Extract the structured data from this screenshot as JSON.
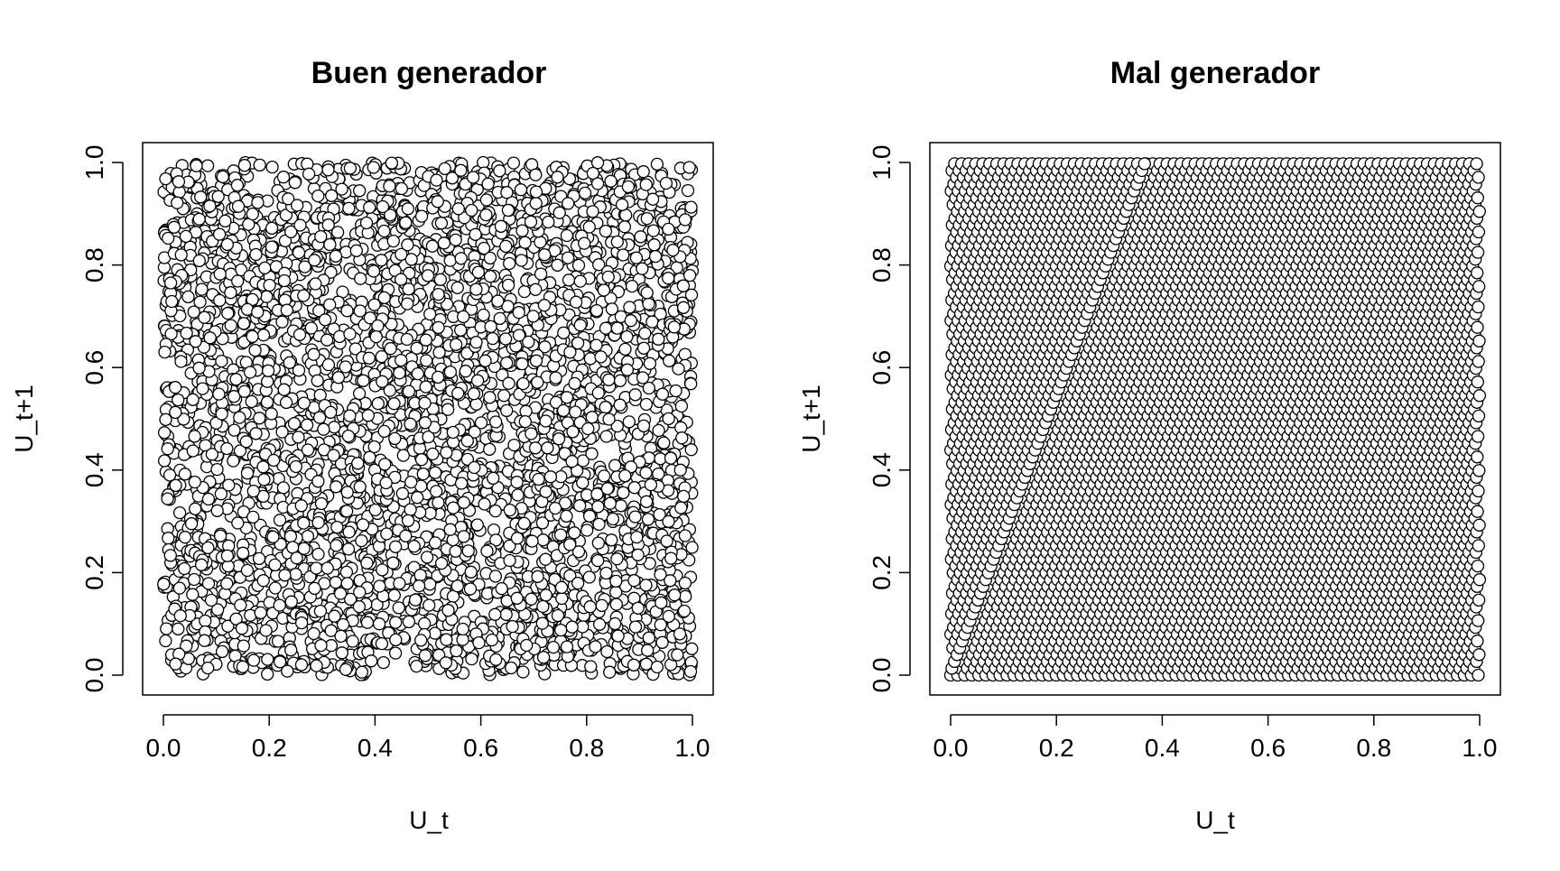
{
  "colors": {
    "background": "#ffffff",
    "marker_fill": "#ffffff",
    "marker_stroke": "#000000",
    "axis": "#000000"
  },
  "chart_data": [
    {
      "type": "scatter",
      "title": "Buen generador",
      "xlabel": "U_t",
      "ylabel": "U_t+1",
      "xlim": [
        0,
        1
      ],
      "ylim": [
        0,
        1
      ],
      "xticks": [
        "0.0",
        "0.2",
        "0.4",
        "0.6",
        "0.8",
        "1.0"
      ],
      "yticks": [
        "0.0",
        "0.2",
        "0.4",
        "0.6",
        "0.8",
        "1.0"
      ],
      "grid": false,
      "legend": "none",
      "marker": "open-circle",
      "pattern": "uniform-random",
      "n_points": 4000
    },
    {
      "type": "scatter",
      "title": "Mal generador",
      "xlabel": "U_t",
      "ylabel": "U_t+1",
      "xlim": [
        0,
        1
      ],
      "ylim": [
        0,
        1
      ],
      "xticks": [
        "0.0",
        "0.2",
        "0.4",
        "0.6",
        "0.8",
        "1.0"
      ],
      "yticks": [
        "0.0",
        "0.2",
        "0.4",
        "0.6",
        "0.8",
        "1.0"
      ],
      "grid": false,
      "legend": "none",
      "marker": "open-circle",
      "pattern": "lattice",
      "lattice_step": 0.0133
    }
  ]
}
